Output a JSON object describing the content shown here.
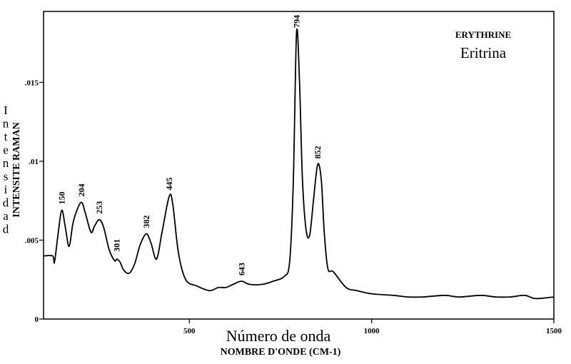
{
  "chart_data": {
    "type": "line",
    "title": "ERYTHRINE",
    "subtitle": "Eritrina",
    "xlabel": "Número de onda",
    "xlabel_secondary": "NOMBRE D'ONDE (CM-1)",
    "ylabel": "INTENSITE RAMAN",
    "ylabel_vertical_letters": [
      "I",
      "n",
      "t",
      "e",
      "n",
      "s",
      "i",
      "d",
      "a",
      "d"
    ],
    "xlim": [
      100,
      1500
    ],
    "ylim": [
      0,
      0.0195
    ],
    "xticks": [
      500,
      1000,
      1500
    ],
    "xtick_labels": [
      "500",
      "1000",
      "1500"
    ],
    "yticks": [
      0,
      0.005,
      0.01,
      0.015
    ],
    "ytick_labels": [
      "0",
      ".005",
      ".01",
      ".015"
    ],
    "grid": false,
    "peak_labels": [
      {
        "x": 150,
        "y": 0.0069,
        "label": "150"
      },
      {
        "x": 204,
        "y": 0.0074,
        "label": "204"
      },
      {
        "x": 253,
        "y": 0.0063,
        "label": "253"
      },
      {
        "x": 301,
        "y": 0.0039,
        "label": "301"
      },
      {
        "x": 382,
        "y": 0.0054,
        "label": "382"
      },
      {
        "x": 445,
        "y": 0.0078,
        "label": "445"
      },
      {
        "x": 643,
        "y": 0.0024,
        "label": "643"
      },
      {
        "x": 794,
        "y": 0.0181,
        "label": "794"
      },
      {
        "x": 852,
        "y": 0.0098,
        "label": "852"
      }
    ],
    "series": [
      {
        "x": [
          100,
          125,
          130,
          140,
          150,
          160,
          170,
          180,
          190,
          204,
          215,
          230,
          240,
          253,
          265,
          280,
          295,
          301,
          310,
          320,
          335,
          350,
          365,
          382,
          395,
          410,
          425,
          445,
          455,
          470,
          490,
          520,
          555,
          580,
          600,
          620,
          643,
          665,
          700,
          730,
          760,
          775,
          785,
          794,
          802,
          810,
          820,
          830,
          840,
          852,
          862,
          870,
          880,
          895,
          930,
          960,
          1000,
          1060,
          1100,
          1140,
          1200,
          1240,
          1300,
          1340,
          1380,
          1420,
          1450,
          1500
        ],
        "y": [
          0.004,
          0.004,
          0.0036,
          0.0054,
          0.0069,
          0.0058,
          0.0046,
          0.006,
          0.0068,
          0.0074,
          0.0067,
          0.0055,
          0.0059,
          0.0063,
          0.0058,
          0.0044,
          0.0037,
          0.0038,
          0.0036,
          0.0031,
          0.0029,
          0.0035,
          0.0047,
          0.0054,
          0.0048,
          0.0038,
          0.0055,
          0.0078,
          0.0072,
          0.0042,
          0.0025,
          0.0021,
          0.0018,
          0.002,
          0.002,
          0.0022,
          0.0024,
          0.0022,
          0.0022,
          0.0024,
          0.0027,
          0.0036,
          0.0085,
          0.0181,
          0.0152,
          0.009,
          0.0057,
          0.0053,
          0.0074,
          0.0098,
          0.0088,
          0.0055,
          0.0032,
          0.003,
          0.002,
          0.0018,
          0.0016,
          0.0015,
          0.0014,
          0.0014,
          0.0015,
          0.0014,
          0.0015,
          0.0014,
          0.0014,
          0.0015,
          0.0013,
          0.0014
        ]
      }
    ]
  }
}
